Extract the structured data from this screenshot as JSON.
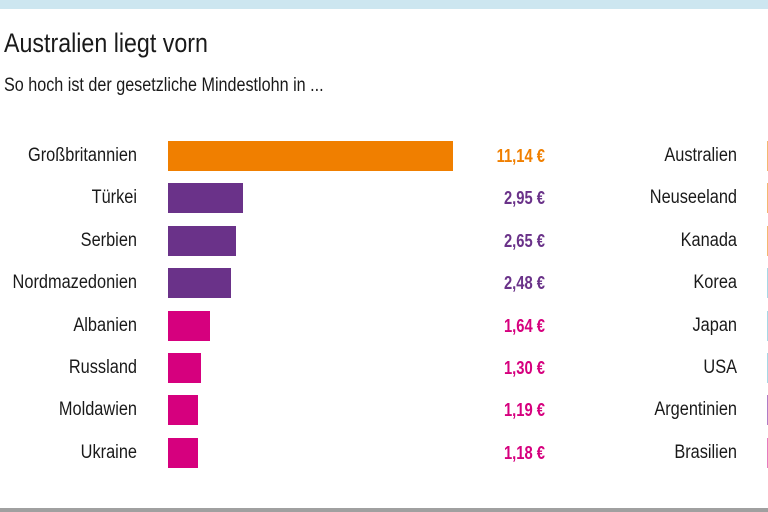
{
  "header": {
    "title": "Australien liegt vorn",
    "subtitle": "So hoch ist der gesetzliche Mindestlohn in ..."
  },
  "colors": {
    "top_band": "#cde6f0",
    "orange": "#f07f00",
    "purple": "#6a3289",
    "magenta": "#d6007e",
    "light_blue": "#a7d8e6",
    "light_orange": "#f5b870",
    "light_purple": "#b07cc6",
    "pink": "#e77bbf"
  },
  "chart_data": [
    {
      "type": "bar",
      "orientation": "horizontal",
      "title": "Australien liegt vorn",
      "subtitle": "So hoch ist der gesetzliche Mindestlohn in ...",
      "unit": "€",
      "categories": [
        "Großbritannien",
        "Türkei",
        "Serbien",
        "Nordmazedonien",
        "Albanien",
        "Russland",
        "Moldawien",
        "Ukraine"
      ],
      "values": [
        11.14,
        2.95,
        2.65,
        2.48,
        1.64,
        1.3,
        1.19,
        1.18
      ],
      "value_labels": [
        "11,14 €",
        "2,95 €",
        "2,65 €",
        "2,48 €",
        "1,64 €",
        "1,30 €",
        "1,19 €",
        "1,18 €"
      ],
      "bar_colors": [
        "#f07f00",
        "#6a3289",
        "#6a3289",
        "#6a3289",
        "#d6007e",
        "#d6007e",
        "#d6007e",
        "#d6007e"
      ],
      "xlim": [
        0,
        11.14
      ],
      "grid": false
    },
    {
      "type": "bar",
      "orientation": "horizontal",
      "note": "bars and values cut off at right edge of image",
      "categories": [
        "Australien",
        "Neuseeland",
        "Kanada",
        "Korea",
        "Japan",
        "USA",
        "Argentinien",
        "Brasilien"
      ],
      "bar_colors": [
        "#f5b870",
        "#f5b870",
        "#f5b870",
        "#a7d8e6",
        "#a7d8e6",
        "#a7d8e6",
        "#b07cc6",
        "#e77bbf"
      ]
    }
  ]
}
